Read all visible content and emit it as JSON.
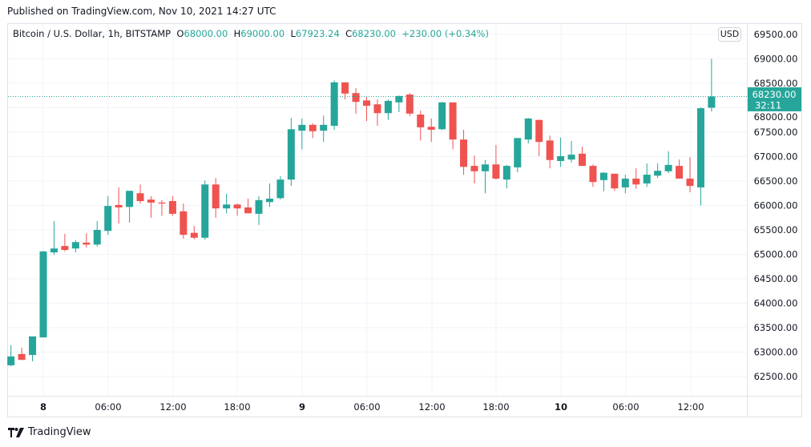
{
  "published": "Published on TradingView.com, Nov 10, 2021 14:27 UTC",
  "legend": {
    "symbol": "Bitcoin / U.S. Dollar, 1h, BITSTAMP",
    "o_label": "O",
    "o": "68000.00",
    "h_label": "H",
    "h": "69000.00",
    "l_label": "L",
    "l": "67923.24",
    "c_label": "C",
    "c": "68230.00",
    "change": "+230.00 (+0.34%)"
  },
  "currency_button": "USD",
  "price_label": {
    "price": "68230.00",
    "countdown": "32:11"
  },
  "logo_text": "TradingView",
  "colors": {
    "up": "#26a69a",
    "down": "#ef5350",
    "grid": "#f0f3fa",
    "text": "#131722"
  },
  "chart_data": {
    "type": "candlestick",
    "interval": "1h",
    "last_price": 68230,
    "y_ticks": [
      "69500.00",
      "69000.00",
      "68500.00",
      "68000.00",
      "67500.00",
      "67000.00",
      "66500.00",
      "66000.00",
      "65500.00",
      "65000.00",
      "64500.00",
      "64000.00",
      "63500.00",
      "63000.00",
      "62500.00"
    ],
    "ylim": [
      62150,
      69950
    ],
    "x_ticks": [
      "8",
      "06:00",
      "12:00",
      "18:00",
      "9",
      "06:00",
      "12:00",
      "18:00",
      "10",
      "06:00",
      "12:00"
    ],
    "start": "Nov 7 21:00",
    "grid": true,
    "ohlc": [
      [
        62730,
        63140,
        62710,
        62910
      ],
      [
        62960,
        63090,
        62840,
        62840
      ],
      [
        62940,
        63320,
        62810,
        63320
      ],
      [
        63300,
        65070,
        63300,
        65060
      ],
      [
        65040,
        65680,
        64990,
        65120
      ],
      [
        65170,
        65420,
        65060,
        65090
      ],
      [
        65120,
        65290,
        65040,
        65250
      ],
      [
        65240,
        65430,
        65140,
        65200
      ],
      [
        65200,
        65680,
        65160,
        65500
      ],
      [
        65480,
        66190,
        65400,
        65990
      ],
      [
        66010,
        66370,
        65630,
        65960
      ],
      [
        65970,
        66300,
        65650,
        66300
      ],
      [
        66250,
        66430,
        66040,
        66090
      ],
      [
        66120,
        66190,
        65750,
        66060
      ],
      [
        66060,
        66110,
        65790,
        66040
      ],
      [
        66090,
        66190,
        65790,
        65830
      ],
      [
        65880,
        66040,
        65320,
        65400
      ],
      [
        65440,
        65580,
        65310,
        65340
      ],
      [
        65340,
        66510,
        65300,
        66430
      ],
      [
        66430,
        66560,
        65750,
        65940
      ],
      [
        65940,
        66240,
        65840,
        66020
      ],
      [
        66020,
        66040,
        65790,
        65940
      ],
      [
        65960,
        66140,
        65840,
        65840
      ],
      [
        65830,
        66190,
        65600,
        66110
      ],
      [
        66070,
        66450,
        65970,
        66140
      ],
      [
        66150,
        66600,
        66120,
        66530
      ],
      [
        66530,
        67790,
        66400,
        67560
      ],
      [
        67530,
        67780,
        67150,
        67650
      ],
      [
        67650,
        67680,
        67380,
        67520
      ],
      [
        67530,
        67840,
        67300,
        67650
      ],
      [
        67630,
        68560,
        67550,
        68520
      ],
      [
        68520,
        68520,
        68170,
        68290
      ],
      [
        68300,
        68400,
        67880,
        68120
      ],
      [
        68150,
        68220,
        67730,
        68040
      ],
      [
        68070,
        68170,
        67630,
        67890
      ],
      [
        67890,
        68170,
        67750,
        68140
      ],
      [
        68110,
        68250,
        67910,
        68240
      ],
      [
        68270,
        68300,
        67830,
        67880
      ],
      [
        67860,
        67940,
        67330,
        67600
      ],
      [
        67610,
        67780,
        67300,
        67550
      ],
      [
        67560,
        68120,
        67540,
        68110
      ],
      [
        68110,
        68110,
        67150,
        67350
      ],
      [
        67350,
        67550,
        66630,
        66790
      ],
      [
        66810,
        67020,
        66450,
        66700
      ],
      [
        66700,
        66930,
        66250,
        66840
      ],
      [
        66840,
        67240,
        66530,
        66550
      ],
      [
        66530,
        66830,
        66350,
        66810
      ],
      [
        66780,
        67380,
        66680,
        67380
      ],
      [
        67350,
        67790,
        67270,
        67780
      ],
      [
        67750,
        67760,
        67010,
        67300
      ],
      [
        67330,
        67430,
        66760,
        66930
      ],
      [
        66910,
        67390,
        66790,
        67010
      ],
      [
        66940,
        67320,
        66880,
        67040
      ],
      [
        67060,
        67200,
        66810,
        66810
      ],
      [
        66810,
        66840,
        66380,
        66480
      ],
      [
        66520,
        66680,
        66290,
        66670
      ],
      [
        66650,
        66650,
        66300,
        66350
      ],
      [
        66370,
        66630,
        66250,
        66550
      ],
      [
        66550,
        66760,
        66340,
        66430
      ],
      [
        66450,
        66860,
        66380,
        66630
      ],
      [
        66610,
        66860,
        66560,
        66710
      ],
      [
        66700,
        67110,
        66660,
        66830
      ],
      [
        66810,
        66940,
        66550,
        66550
      ],
      [
        66550,
        66990,
        66270,
        66400
      ],
      [
        66370,
        68010,
        66000,
        67990
      ],
      [
        68000,
        69000,
        67923.24,
        68230
      ]
    ]
  }
}
